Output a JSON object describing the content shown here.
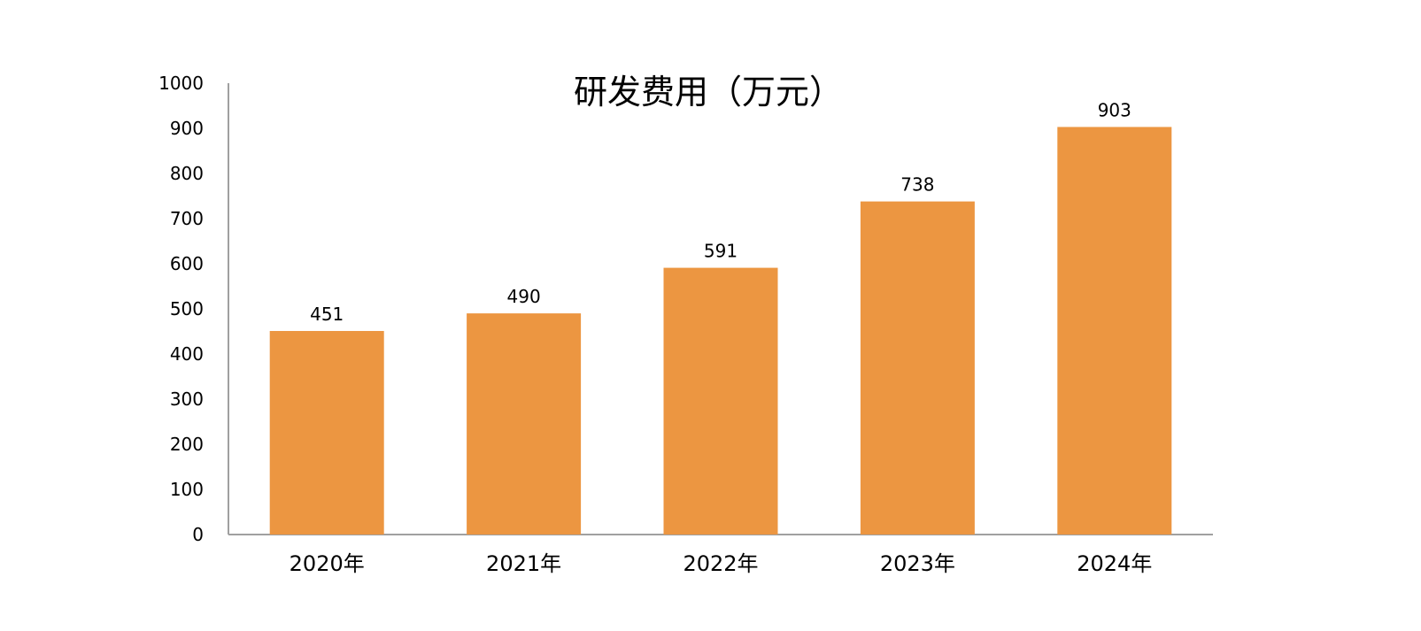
{
  "chart_data": {
    "type": "bar",
    "title": "研发费用（万元）",
    "xlabel": "",
    "ylabel": "",
    "categories": [
      "2020年",
      "2021年",
      "2022年",
      "2023年",
      "2024年"
    ],
    "values": [
      451,
      490,
      591,
      738,
      903
    ],
    "data_labels": [
      "451",
      "490",
      "591",
      "738",
      "903"
    ],
    "ylim": [
      0,
      1000
    ],
    "yticks": [
      0,
      100,
      200,
      300,
      400,
      500,
      600,
      700,
      800,
      900,
      1000
    ],
    "grid": false,
    "legend": "none",
    "bar_color": "#ec9641",
    "axis_color": "#a0a0a0"
  }
}
